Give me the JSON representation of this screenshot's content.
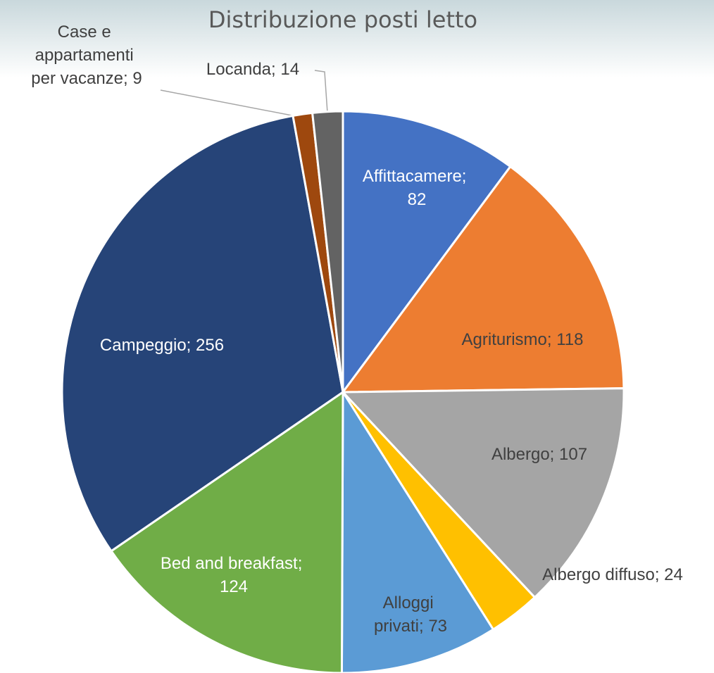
{
  "chart_data": {
    "type": "pie",
    "title": "Distribuzione posti letto",
    "categories": [
      "Affittacamere",
      "Agriturismo",
      "Albergo",
      "Albergo diffuso",
      "Alloggi privati",
      "Bed and breakfast",
      "Campeggio",
      "Case e appartamenti per vacanze",
      "Locanda"
    ],
    "values": [
      82,
      118,
      107,
      24,
      73,
      124,
      256,
      9,
      14
    ],
    "colors": [
      "#4472c4",
      "#ed7d31",
      "#a5a5a5",
      "#ffc000",
      "#5b9bd5",
      "#70ad47",
      "#264478",
      "#9e480e",
      "#636363"
    ],
    "label_separator": "; "
  }
}
